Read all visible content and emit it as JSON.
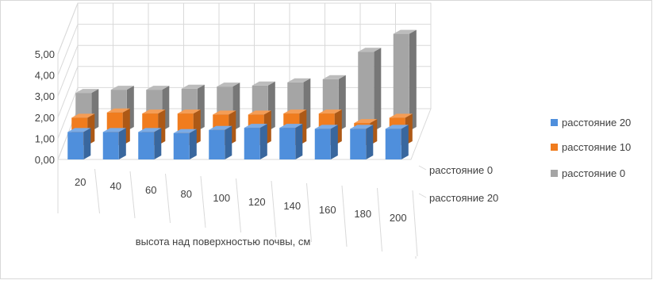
{
  "chart_data": {
    "type": "bar",
    "title": "",
    "xlabel": "высота над поверхностью почвы, см",
    "ylabel": "",
    "ylim": [
      0,
      5
    ],
    "y_ticks": [
      "0,00",
      "1,00",
      "2,00",
      "3,00",
      "4,00",
      "5,00"
    ],
    "categories": [
      "20",
      "40",
      "60",
      "80",
      "100",
      "120",
      "140",
      "160",
      "180",
      "200"
    ],
    "depth_labels": [
      "расстояние 0",
      "расстояние 20"
    ],
    "series": [
      {
        "name": "расстояние 20",
        "color": "#4f8fdc",
        "values": [
          1.3,
          1.3,
          1.3,
          1.25,
          1.4,
          1.5,
          1.5,
          1.45,
          1.45,
          1.45
        ]
      },
      {
        "name": "расстояние 10",
        "color": "#f07c1e",
        "values": [
          1.3,
          1.55,
          1.5,
          1.5,
          1.45,
          1.45,
          1.5,
          1.5,
          1.05,
          1.3
        ]
      },
      {
        "name": "расстояние 0",
        "color": "#a5a5a5",
        "values": [
          1.8,
          1.95,
          1.95,
          2.0,
          2.1,
          2.15,
          2.3,
          2.45,
          3.75,
          4.6
        ]
      }
    ],
    "legend_position": "right",
    "grid": true,
    "chart_style": "3d-column"
  }
}
